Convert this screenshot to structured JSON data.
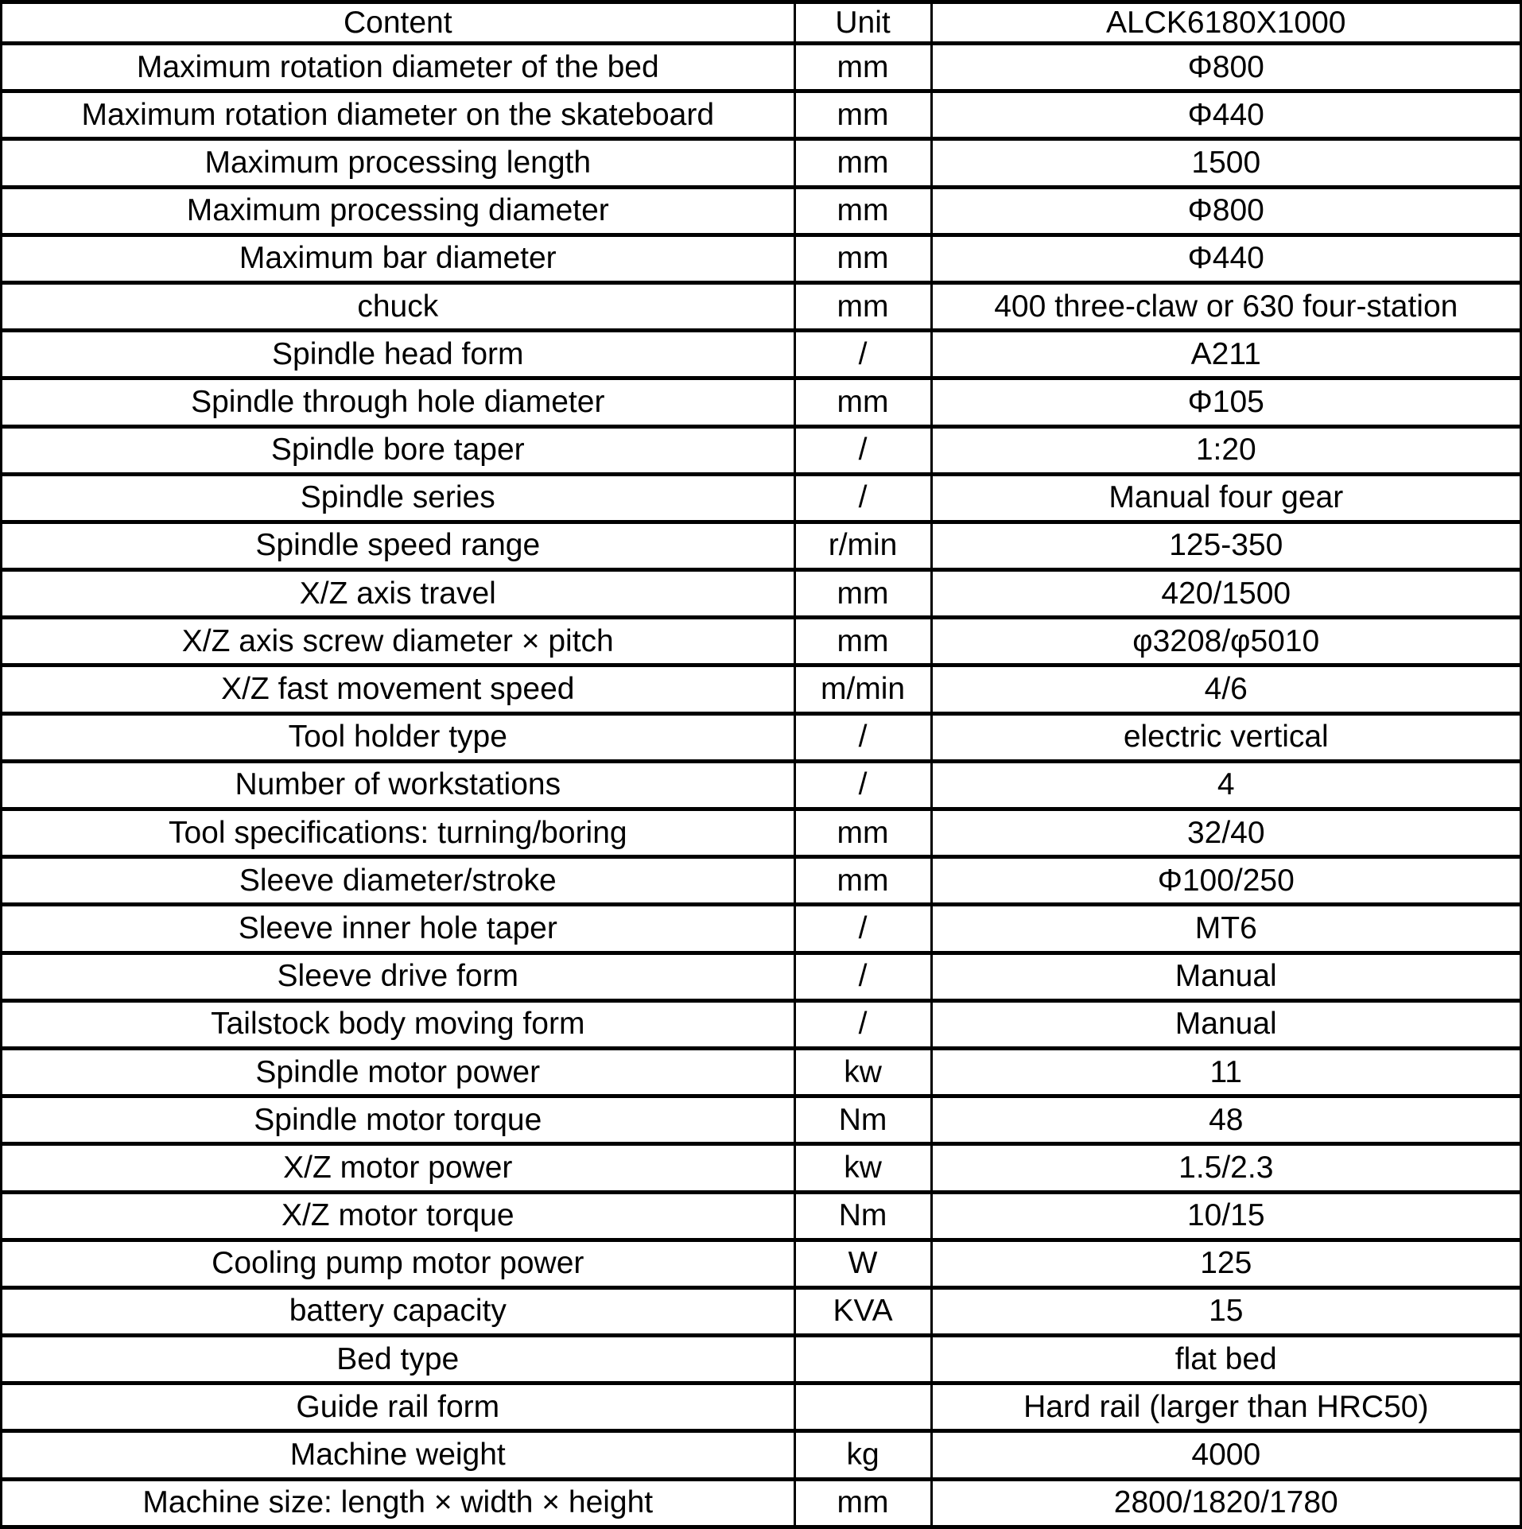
{
  "table": {
    "columns": [
      "Content",
      "Unit",
      "ALCK6180X1000"
    ],
    "rows": [
      {
        "content": "Maximum rotation diameter of the bed",
        "unit": "mm",
        "value": "Φ800"
      },
      {
        "content": "Maximum rotation diameter on the skateboard",
        "unit": "mm",
        "value": "Φ440"
      },
      {
        "content": "Maximum processing length",
        "unit": "mm",
        "value": "1500"
      },
      {
        "content": "Maximum processing diameter",
        "unit": "mm",
        "value": "Φ800"
      },
      {
        "content": "Maximum bar diameter",
        "unit": "mm",
        "value": "Φ440"
      },
      {
        "content": "chuck",
        "unit": "mm",
        "value": "400 three-claw or 630 four-station"
      },
      {
        "content": "Spindle head form",
        "unit": "/",
        "value": "A211"
      },
      {
        "content": "Spindle through hole diameter",
        "unit": "mm",
        "value": "Φ105"
      },
      {
        "content": "Spindle bore taper",
        "unit": "/",
        "value": "1:20"
      },
      {
        "content": "Spindle series",
        "unit": "/",
        "value": "Manual four gear"
      },
      {
        "content": "Spindle speed range",
        "unit": "r/min",
        "value": "125-350"
      },
      {
        "content": "X/Z axis travel",
        "unit": "mm",
        "value": "420/1500"
      },
      {
        "content": "X/Z axis screw diameter × pitch",
        "unit": "mm",
        "value": "φ3208/φ5010"
      },
      {
        "content": "X/Z fast movement speed",
        "unit": "m/min",
        "value": "4/6"
      },
      {
        "content": "Tool holder type",
        "unit": "/",
        "value": "electric vertical"
      },
      {
        "content": "Number of workstations",
        "unit": "/",
        "value": "4"
      },
      {
        "content": "Tool specifications: turning/boring",
        "unit": "mm",
        "value": "32/40"
      },
      {
        "content": "Sleeve diameter/stroke",
        "unit": "mm",
        "value": "Φ100/250"
      },
      {
        "content": "Sleeve inner hole taper",
        "unit": "/",
        "value": "MT6"
      },
      {
        "content": "Sleeve drive form",
        "unit": "/",
        "value": "Manual"
      },
      {
        "content": "Tailstock body moving form",
        "unit": "/",
        "value": "Manual"
      },
      {
        "content": "Spindle motor power",
        "unit": "kw",
        "value": "11"
      },
      {
        "content": "Spindle motor torque",
        "unit": "Nm",
        "value": "48"
      },
      {
        "content": "X/Z motor power",
        "unit": "kw",
        "value": "1.5/2.3"
      },
      {
        "content": "X/Z motor torque",
        "unit": "Nm",
        "value": "10/15"
      },
      {
        "content": "Cooling pump motor power",
        "unit": "W",
        "value": "125"
      },
      {
        "content": "battery capacity",
        "unit": "KVA",
        "value": "15"
      },
      {
        "content": "Bed type",
        "unit": "",
        "value": "flat bed"
      },
      {
        "content": "Guide rail form",
        "unit": "",
        "value": "Hard rail (larger than HRC50)"
      },
      {
        "content": "Machine weight",
        "unit": "kg",
        "value": "4000"
      },
      {
        "content": "Machine size: length × width × height",
        "unit": "mm",
        "value": "2800/1820/1780"
      }
    ]
  }
}
